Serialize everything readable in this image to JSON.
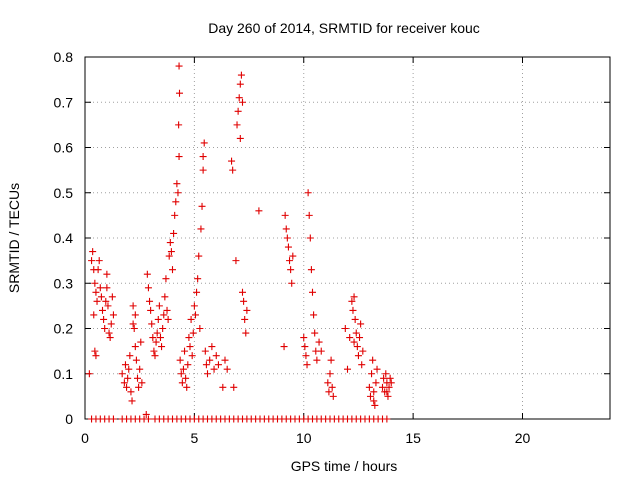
{
  "chart_data": {
    "type": "scatter",
    "title": "Day 260 of 2014, SRMTID for receiver kouc",
    "xlabel": "GPS time / hours",
    "ylabel": "SRMTID / TECUs",
    "xlim": [
      0,
      24
    ],
    "ylim": [
      0,
      0.8
    ],
    "x_ticks": [
      0,
      5,
      10,
      15,
      20
    ],
    "y_ticks": [
      0,
      0.1,
      0.2,
      0.3,
      0.4,
      0.5,
      0.6,
      0.7,
      0.8
    ],
    "x_tick_labels": [
      "0",
      "5",
      "10",
      "15",
      "20"
    ],
    "y_tick_labels": [
      "0",
      "0.1",
      "0.2",
      "0.3",
      "0.4",
      "0.5",
      "0.6",
      "0.7",
      "0.8"
    ],
    "grid": true,
    "marker": "+",
    "color": "#e00000",
    "series": [
      {
        "points": [
          [
            0.2,
            0.1
          ],
          [
            0.3,
            0.35
          ],
          [
            0.35,
            0.37
          ],
          [
            0.4,
            0.33
          ],
          [
            0.45,
            0.3
          ],
          [
            0.5,
            0.28
          ],
          [
            0.4,
            0.23
          ],
          [
            0.45,
            0.15
          ],
          [
            0.5,
            0.14
          ],
          [
            0.55,
            0.26
          ],
          [
            0.6,
            0.33
          ],
          [
            0.65,
            0.35
          ],
          [
            0.7,
            0.29
          ],
          [
            0.75,
            0.27
          ],
          [
            0.8,
            0.24
          ],
          [
            0.85,
            0.22
          ],
          [
            0.9,
            0.2
          ],
          [
            0.95,
            0.26
          ],
          [
            1.0,
            0.29
          ],
          [
            1.05,
            0.25
          ],
          [
            1.1,
            0.19
          ],
          [
            1.15,
            0.18
          ],
          [
            1.2,
            0.21
          ],
          [
            1.25,
            0.27
          ],
          [
            1.3,
            0.23
          ],
          [
            1.0,
            0.32
          ],
          [
            1.7,
            0.1
          ],
          [
            1.8,
            0.08
          ],
          [
            1.85,
            0.12
          ],
          [
            1.9,
            0.07
          ],
          [
            1.95,
            0.09
          ],
          [
            2.0,
            0.11
          ],
          [
            2.05,
            0.14
          ],
          [
            2.1,
            0.06
          ],
          [
            2.15,
            0.04
          ],
          [
            2.2,
            0.25
          ],
          [
            2.25,
            0.2
          ],
          [
            2.3,
            0.16
          ],
          [
            2.35,
            0.13
          ],
          [
            2.4,
            0.09
          ],
          [
            2.45,
            0.07
          ],
          [
            2.5,
            0.11
          ],
          [
            2.55,
            0.17
          ],
          [
            2.6,
            0.08
          ],
          [
            2.2,
            0.21
          ],
          [
            2.3,
            0.23
          ],
          [
            2.8,
            0.01
          ],
          [
            2.85,
            0.32
          ],
          [
            2.9,
            0.29
          ],
          [
            2.95,
            0.26
          ],
          [
            3.0,
            0.24
          ],
          [
            3.05,
            0.21
          ],
          [
            3.1,
            0.18
          ],
          [
            3.15,
            0.15
          ],
          [
            3.2,
            0.14
          ],
          [
            3.25,
            0.17
          ],
          [
            3.3,
            0.19
          ],
          [
            3.35,
            0.22
          ],
          [
            3.4,
            0.25
          ],
          [
            3.45,
            0.18
          ],
          [
            3.5,
            0.16
          ],
          [
            3.55,
            0.2
          ],
          [
            3.6,
            0.23
          ],
          [
            3.65,
            0.27
          ],
          [
            3.7,
            0.31
          ],
          [
            3.75,
            0.24
          ],
          [
            3.8,
            0.22
          ],
          [
            3.85,
            0.36
          ],
          [
            3.9,
            0.39
          ],
          [
            3.95,
            0.37
          ],
          [
            4.0,
            0.33
          ],
          [
            4.05,
            0.41
          ],
          [
            4.1,
            0.45
          ],
          [
            4.15,
            0.48
          ],
          [
            4.2,
            0.52
          ],
          [
            4.25,
            0.5
          ],
          [
            4.3,
            0.58
          ],
          [
            4.28,
            0.65
          ],
          [
            4.32,
            0.72
          ],
          [
            4.3,
            0.78
          ],
          [
            4.35,
            0.13
          ],
          [
            4.4,
            0.1
          ],
          [
            4.45,
            0.08
          ],
          [
            4.5,
            0.11
          ],
          [
            4.55,
            0.15
          ],
          [
            4.6,
            0.09
          ],
          [
            4.65,
            0.07
          ],
          [
            4.7,
            0.12
          ],
          [
            4.75,
            0.18
          ],
          [
            4.8,
            0.16
          ],
          [
            4.85,
            0.22
          ],
          [
            4.9,
            0.14
          ],
          [
            4.95,
            0.19
          ],
          [
            5.0,
            0.25
          ],
          [
            5.05,
            0.23
          ],
          [
            5.1,
            0.28
          ],
          [
            5.15,
            0.31
          ],
          [
            5.2,
            0.36
          ],
          [
            5.25,
            0.2
          ],
          [
            5.3,
            0.42
          ],
          [
            5.35,
            0.47
          ],
          [
            5.4,
            0.55
          ],
          [
            5.45,
            0.61
          ],
          [
            5.4,
            0.58
          ],
          [
            5.5,
            0.15
          ],
          [
            5.55,
            0.12
          ],
          [
            5.6,
            0.1
          ],
          [
            5.7,
            0.13
          ],
          [
            5.8,
            0.16
          ],
          [
            5.9,
            0.11
          ],
          [
            6.0,
            0.14
          ],
          [
            6.1,
            0.12
          ],
          [
            6.3,
            0.07
          ],
          [
            6.4,
            0.13
          ],
          [
            6.5,
            0.11
          ],
          [
            6.7,
            0.57
          ],
          [
            6.75,
            0.55
          ],
          [
            6.8,
            0.07
          ],
          [
            6.9,
            0.35
          ],
          [
            6.95,
            0.65
          ],
          [
            7.0,
            0.68
          ],
          [
            7.05,
            0.71
          ],
          [
            7.1,
            0.74
          ],
          [
            7.15,
            0.76
          ],
          [
            7.2,
            0.7
          ],
          [
            7.1,
            0.62
          ],
          [
            7.2,
            0.28
          ],
          [
            7.25,
            0.26
          ],
          [
            7.3,
            0.22
          ],
          [
            7.35,
            0.19
          ],
          [
            7.4,
            0.24
          ],
          [
            7.95,
            0.46
          ],
          [
            9.1,
            0.16
          ],
          [
            9.15,
            0.45
          ],
          [
            9.2,
            0.42
          ],
          [
            9.25,
            0.4
          ],
          [
            9.3,
            0.38
          ],
          [
            9.35,
            0.35
          ],
          [
            9.4,
            0.33
          ],
          [
            9.45,
            0.3
          ],
          [
            9.5,
            0.36
          ],
          [
            10.0,
            0.18
          ],
          [
            10.05,
            0.16
          ],
          [
            10.1,
            0.14
          ],
          [
            10.15,
            0.12
          ],
          [
            10.2,
            0.5
          ],
          [
            10.25,
            0.45
          ],
          [
            10.3,
            0.4
          ],
          [
            10.35,
            0.33
          ],
          [
            10.4,
            0.28
          ],
          [
            10.45,
            0.23
          ],
          [
            10.5,
            0.19
          ],
          [
            10.55,
            0.15
          ],
          [
            10.6,
            0.13
          ],
          [
            10.7,
            0.17
          ],
          [
            10.8,
            0.15
          ],
          [
            11.1,
            0.08
          ],
          [
            11.15,
            0.06
          ],
          [
            11.2,
            0.1
          ],
          [
            11.25,
            0.13
          ],
          [
            11.3,
            0.07
          ],
          [
            11.35,
            0.05
          ],
          [
            11.9,
            0.2
          ],
          [
            12.0,
            0.11
          ],
          [
            12.1,
            0.18
          ],
          [
            12.2,
            0.26
          ],
          [
            12.25,
            0.24
          ],
          [
            12.3,
            0.27
          ],
          [
            12.35,
            0.22
          ],
          [
            12.4,
            0.19
          ],
          [
            12.45,
            0.16
          ],
          [
            12.5,
            0.14
          ],
          [
            12.55,
            0.18
          ],
          [
            12.6,
            0.21
          ],
          [
            12.65,
            0.12
          ],
          [
            12.7,
            0.15
          ],
          [
            12.3,
            0.17
          ],
          [
            13.0,
            0.07
          ],
          [
            13.05,
            0.05
          ],
          [
            13.1,
            0.1
          ],
          [
            13.15,
            0.13
          ],
          [
            13.2,
            0.04
          ],
          [
            13.25,
            0.03
          ],
          [
            13.3,
            0.08
          ],
          [
            13.35,
            0.11
          ],
          [
            13.2,
            0.06
          ],
          [
            13.6,
            0.07
          ],
          [
            13.65,
            0.09
          ],
          [
            13.7,
            0.06
          ],
          [
            13.75,
            0.1
          ],
          [
            13.8,
            0.08
          ],
          [
            13.85,
            0.05
          ],
          [
            13.9,
            0.07
          ],
          [
            13.95,
            0.09
          ],
          [
            14.0,
            0.08
          ],
          [
            13.8,
            0.06
          ],
          [
            0.3,
            0
          ],
          [
            0.5,
            0
          ],
          [
            0.7,
            0
          ],
          [
            0.9,
            0
          ],
          [
            1.1,
            0
          ],
          [
            1.3,
            0
          ],
          [
            1.7,
            0
          ],
          [
            1.9,
            0
          ],
          [
            2.1,
            0
          ],
          [
            2.3,
            0
          ],
          [
            2.5,
            0
          ],
          [
            2.7,
            0
          ],
          [
            2.9,
            0
          ],
          [
            3.2,
            0
          ],
          [
            3.4,
            0
          ],
          [
            3.6,
            0
          ],
          [
            3.8,
            0
          ],
          [
            4.0,
            0
          ],
          [
            4.2,
            0
          ],
          [
            4.4,
            0
          ],
          [
            4.6,
            0
          ],
          [
            4.8,
            0
          ],
          [
            5.0,
            0
          ],
          [
            5.2,
            0
          ],
          [
            5.4,
            0
          ],
          [
            5.6,
            0
          ],
          [
            5.8,
            0
          ],
          [
            6.0,
            0
          ],
          [
            6.2,
            0
          ],
          [
            6.4,
            0
          ],
          [
            6.6,
            0
          ],
          [
            6.8,
            0
          ],
          [
            7.0,
            0
          ],
          [
            7.2,
            0
          ],
          [
            7.4,
            0
          ],
          [
            7.6,
            0
          ],
          [
            7.8,
            0
          ],
          [
            8.0,
            0
          ],
          [
            8.2,
            0
          ],
          [
            8.4,
            0
          ],
          [
            8.6,
            0
          ],
          [
            8.8,
            0
          ],
          [
            9.0,
            0
          ],
          [
            9.2,
            0
          ],
          [
            9.4,
            0
          ],
          [
            9.6,
            0
          ],
          [
            9.8,
            0
          ],
          [
            10.0,
            0
          ],
          [
            10.2,
            0
          ],
          [
            10.4,
            0
          ],
          [
            10.6,
            0
          ],
          [
            10.8,
            0
          ],
          [
            11.0,
            0
          ],
          [
            11.2,
            0
          ],
          [
            11.4,
            0
          ],
          [
            11.6,
            0
          ],
          [
            11.8,
            0
          ],
          [
            12.0,
            0
          ],
          [
            12.2,
            0
          ],
          [
            12.4,
            0
          ],
          [
            12.6,
            0
          ],
          [
            12.8,
            0
          ],
          [
            13.0,
            0
          ],
          [
            13.2,
            0
          ],
          [
            13.4,
            0
          ],
          [
            13.6,
            0
          ],
          [
            13.8,
            0
          ]
        ]
      }
    ]
  }
}
